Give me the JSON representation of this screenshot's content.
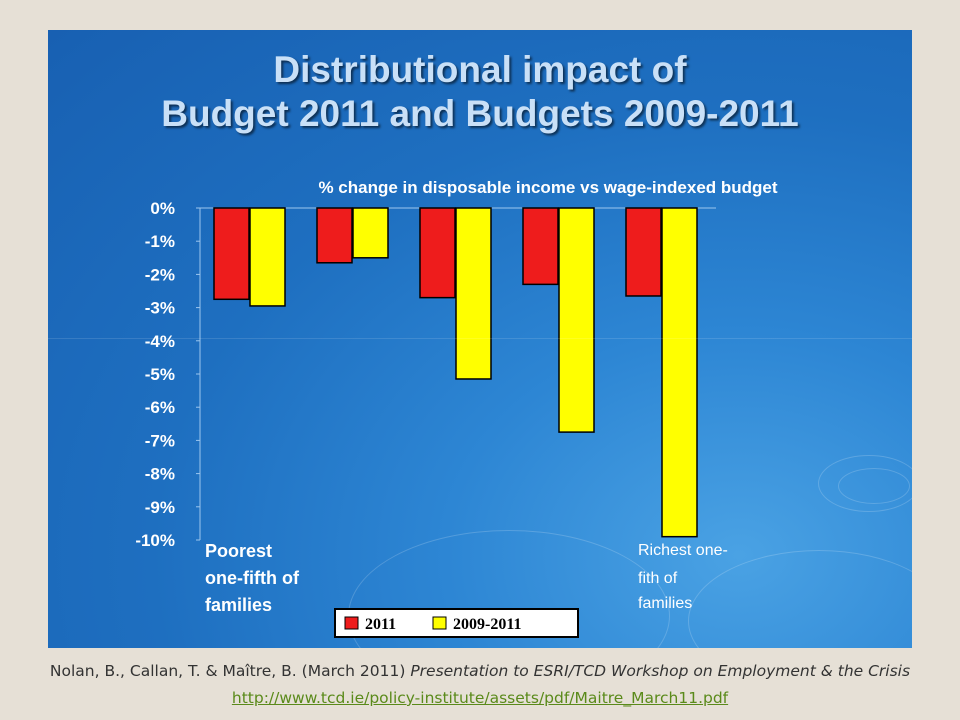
{
  "title": {
    "line1": "Distributional impact of",
    "line2": "Budget 2011 and Budgets 2009-2011"
  },
  "chart_data": {
    "type": "bar",
    "subtitle": "% change in disposable income vs wage-indexed budget",
    "categories": [
      "Poorest one-fifth of families",
      "",
      "",
      "",
      "Richest one-fifth of families"
    ],
    "category_text": {
      "left": [
        "Poorest",
        "one-fifth of",
        "families"
      ],
      "right": [
        "Richest one-",
        "fith of",
        "families"
      ]
    },
    "series": [
      {
        "name": "2011",
        "color": "#ee1c1c",
        "values": [
          -2.75,
          -1.65,
          -2.7,
          -2.3,
          -2.65
        ]
      },
      {
        "name": "2009-2011",
        "color": "#ffff00",
        "values": [
          -2.95,
          -1.5,
          -5.15,
          -6.75,
          -9.9
        ]
      }
    ],
    "y_ticks": [
      "0%",
      "-1%",
      "-2%",
      "-3%",
      "-4%",
      "-5%",
      "-6%",
      "-7%",
      "-8%",
      "-9%",
      "-10%"
    ],
    "ylim": [
      -10,
      0
    ],
    "legend_position": "bottom",
    "grid": false
  },
  "caption": {
    "authors": "Nolan, B., Callan, T. & Maître, B. (March 2011)",
    "presentation": "Presentation to ESRI/TCD Workshop on Employment & the Crisis",
    "url": "http://www.tcd.ie/policy-institute/assets/pdf/Maitre_March11.pdf"
  }
}
